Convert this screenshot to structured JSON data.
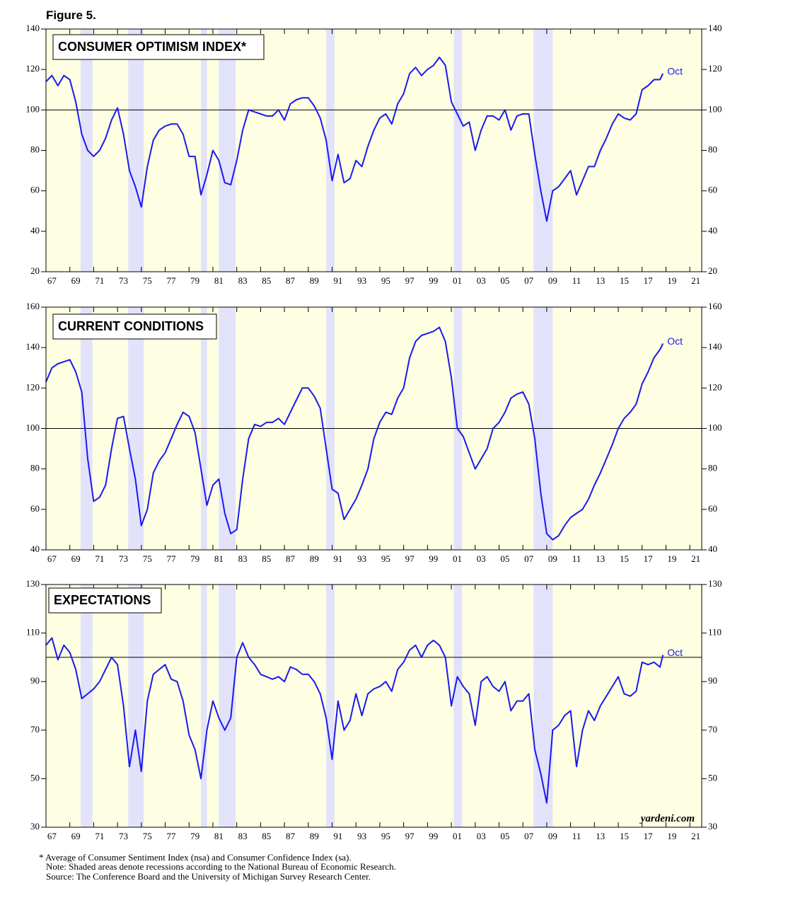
{
  "figure_label": "Figure 5.",
  "footnotes": [
    "* Average of Consumer Sentiment Index (nsa) and Consumer Confidence Index (sa).",
    "Note: Shaded areas denote recessions according to the National Bureau of Economic Research.",
    "Source: The Conference Board and the University of Michigan Survey Research Center."
  ],
  "credit": "yardeni.com",
  "chart_data": [
    {
      "type": "line",
      "title": "CONSUMER OPTIMISM INDEX*",
      "end_label": "Oct",
      "hline": 100,
      "xlim": [
        1967,
        2022
      ],
      "ylim": [
        20,
        140
      ],
      "yticks": [
        20,
        40,
        60,
        80,
        100,
        120,
        140
      ],
      "xticks": [
        {
          "value": 1967,
          "label": "67"
        },
        {
          "value": 1969,
          "label": "69"
        },
        {
          "value": 1971,
          "label": "71"
        },
        {
          "value": 1973,
          "label": "73"
        },
        {
          "value": 1975,
          "label": "75"
        },
        {
          "value": 1977,
          "label": "77"
        },
        {
          "value": 1979,
          "label": "79"
        },
        {
          "value": 1981,
          "label": "81"
        },
        {
          "value": 1983,
          "label": "83"
        },
        {
          "value": 1985,
          "label": "85"
        },
        {
          "value": 1987,
          "label": "87"
        },
        {
          "value": 1989,
          "label": "89"
        },
        {
          "value": 1991,
          "label": "91"
        },
        {
          "value": 1993,
          "label": "93"
        },
        {
          "value": 1995,
          "label": "95"
        },
        {
          "value": 1997,
          "label": "97"
        },
        {
          "value": 1999,
          "label": "99"
        },
        {
          "value": 2001,
          "label": "01"
        },
        {
          "value": 2003,
          "label": "03"
        },
        {
          "value": 2005,
          "label": "05"
        },
        {
          "value": 2007,
          "label": "07"
        },
        {
          "value": 2009,
          "label": "09"
        },
        {
          "value": 2011,
          "label": "11"
        },
        {
          "value": 2013,
          "label": "13"
        },
        {
          "value": 2015,
          "label": "15"
        },
        {
          "value": 2017,
          "label": "17"
        },
        {
          "value": 2019,
          "label": "19"
        },
        {
          "value": 2021,
          "label": "21"
        }
      ],
      "recessions": [
        [
          1969.9,
          1970.9
        ],
        [
          1973.9,
          1975.2
        ],
        [
          1980.0,
          1980.5
        ],
        [
          1981.5,
          1982.9
        ],
        [
          1990.5,
          1991.2
        ],
        [
          2001.2,
          2001.9
        ],
        [
          2007.9,
          2009.5
        ]
      ],
      "x": [
        1967,
        1967.5,
        1968,
        1968.5,
        1969,
        1969.5,
        1970,
        1970.5,
        1971,
        1971.5,
        1972,
        1972.5,
        1973,
        1973.5,
        1974,
        1974.5,
        1975,
        1975.5,
        1976,
        1976.5,
        1977,
        1977.5,
        1978,
        1978.5,
        1979,
        1979.5,
        1980,
        1980.5,
        1981,
        1981.5,
        1982,
        1982.5,
        1983,
        1983.5,
        1984,
        1984.5,
        1985,
        1985.5,
        1986,
        1986.5,
        1987,
        1987.5,
        1988,
        1988.5,
        1989,
        1989.5,
        1990,
        1990.5,
        1991,
        1991.5,
        1992,
        1992.5,
        1993,
        1993.5,
        1994,
        1994.5,
        1995,
        1995.5,
        1996,
        1996.5,
        1997,
        1997.5,
        1998,
        1998.5,
        1999,
        1999.5,
        2000,
        2000.5,
        2001,
        2001.5,
        2002,
        2002.5,
        2003,
        2003.5,
        2004,
        2004.5,
        2005,
        2005.5,
        2006,
        2006.5,
        2007,
        2007.5,
        2008,
        2008.5,
        2009,
        2009.5,
        2010,
        2010.5,
        2011,
        2011.5,
        2012,
        2012.5,
        2013,
        2013.5,
        2014,
        2014.5,
        2015,
        2015.5,
        2016,
        2016.5,
        2017,
        2017.5,
        2018,
        2018.5,
        2018.75
      ],
      "series": [
        {
          "color": "#1a1aee",
          "values": [
            114,
            117,
            112,
            117,
            115,
            104,
            88,
            80,
            77,
            80,
            86,
            95,
            101,
            88,
            70,
            62,
            52,
            72,
            85,
            90,
            92,
            93,
            93,
            88,
            77,
            77,
            58,
            68,
            80,
            75,
            64,
            63,
            75,
            90,
            100,
            99,
            98,
            97,
            97,
            100,
            95,
            103,
            105,
            106,
            106,
            102,
            96,
            85,
            65,
            78,
            64,
            66,
            75,
            72,
            82,
            90,
            96,
            98,
            93,
            103,
            108,
            118,
            121,
            117,
            120,
            122,
            126,
            122,
            104,
            98,
            92,
            94,
            80,
            90,
            97,
            97,
            95,
            100,
            90,
            97,
            98,
            98,
            78,
            60,
            45,
            60,
            62,
            66,
            70,
            58,
            65,
            72,
            72,
            80,
            86,
            93,
            98,
            96,
            95,
            98,
            110,
            112,
            115,
            115,
            118
          ]
        }
      ]
    },
    {
      "type": "line",
      "title": "CURRENT CONDITIONS",
      "end_label": "Oct",
      "hline": 100,
      "xlim": [
        1967,
        2022
      ],
      "ylim": [
        40,
        160
      ],
      "yticks": [
        40,
        60,
        80,
        100,
        120,
        140,
        160
      ],
      "xticks": [
        {
          "value": 1967,
          "label": "67"
        },
        {
          "value": 1969,
          "label": "69"
        },
        {
          "value": 1971,
          "label": "71"
        },
        {
          "value": 1973,
          "label": "73"
        },
        {
          "value": 1975,
          "label": "75"
        },
        {
          "value": 1977,
          "label": "77"
        },
        {
          "value": 1979,
          "label": "79"
        },
        {
          "value": 1981,
          "label": "81"
        },
        {
          "value": 1983,
          "label": "83"
        },
        {
          "value": 1985,
          "label": "85"
        },
        {
          "value": 1987,
          "label": "87"
        },
        {
          "value": 1989,
          "label": "89"
        },
        {
          "value": 1991,
          "label": "91"
        },
        {
          "value": 1993,
          "label": "93"
        },
        {
          "value": 1995,
          "label": "95"
        },
        {
          "value": 1997,
          "label": "97"
        },
        {
          "value": 1999,
          "label": "99"
        },
        {
          "value": 2001,
          "label": "01"
        },
        {
          "value": 2003,
          "label": "03"
        },
        {
          "value": 2005,
          "label": "05"
        },
        {
          "value": 2007,
          "label": "07"
        },
        {
          "value": 2009,
          "label": "09"
        },
        {
          "value": 2011,
          "label": "11"
        },
        {
          "value": 2013,
          "label": "13"
        },
        {
          "value": 2015,
          "label": "15"
        },
        {
          "value": 2017,
          "label": "17"
        },
        {
          "value": 2019,
          "label": "19"
        },
        {
          "value": 2021,
          "label": "21"
        }
      ],
      "recessions": [
        [
          1969.9,
          1970.9
        ],
        [
          1973.9,
          1975.2
        ],
        [
          1980.0,
          1980.5
        ],
        [
          1981.5,
          1982.9
        ],
        [
          1990.5,
          1991.2
        ],
        [
          2001.2,
          2001.9
        ],
        [
          2007.9,
          2009.5
        ]
      ],
      "x": [
        1967,
        1967.5,
        1968,
        1968.5,
        1969,
        1969.5,
        1970,
        1970.5,
        1971,
        1971.5,
        1972,
        1972.5,
        1973,
        1973.5,
        1974,
        1974.5,
        1975,
        1975.5,
        1976,
        1976.5,
        1977,
        1977.5,
        1978,
        1978.5,
        1979,
        1979.5,
        1980,
        1980.5,
        1981,
        1981.5,
        1982,
        1982.5,
        1983,
        1983.5,
        1984,
        1984.5,
        1985,
        1985.5,
        1986,
        1986.5,
        1987,
        1987.5,
        1988,
        1988.5,
        1989,
        1989.5,
        1990,
        1990.5,
        1991,
        1991.5,
        1992,
        1992.5,
        1993,
        1993.5,
        1994,
        1994.5,
        1995,
        1995.5,
        1996,
        1996.5,
        1997,
        1997.5,
        1998,
        1998.5,
        1999,
        1999.5,
        2000,
        2000.5,
        2001,
        2001.5,
        2002,
        2002.5,
        2003,
        2003.5,
        2004,
        2004.5,
        2005,
        2005.5,
        2006,
        2006.5,
        2007,
        2007.5,
        2008,
        2008.5,
        2009,
        2009.5,
        2010,
        2010.5,
        2011,
        2011.5,
        2012,
        2012.5,
        2013,
        2013.5,
        2014,
        2014.5,
        2015,
        2015.5,
        2016,
        2016.5,
        2017,
        2017.5,
        2018,
        2018.5,
        2018.75
      ],
      "series": [
        {
          "color": "#1a1aee",
          "values": [
            123,
            130,
            132,
            133,
            134,
            128,
            118,
            85,
            64,
            66,
            72,
            90,
            105,
            106,
            90,
            75,
            52,
            60,
            78,
            84,
            88,
            95,
            102,
            108,
            106,
            98,
            80,
            62,
            72,
            75,
            58,
            48,
            50,
            75,
            95,
            102,
            101,
            103,
            103,
            105,
            102,
            108,
            114,
            120,
            120,
            116,
            110,
            90,
            70,
            68,
            55,
            60,
            65,
            72,
            80,
            95,
            103,
            108,
            107,
            115,
            120,
            135,
            143,
            146,
            147,
            148,
            150,
            143,
            125,
            100,
            96,
            88,
            80,
            85,
            90,
            100,
            103,
            108,
            115,
            117,
            118,
            112,
            95,
            68,
            48,
            45,
            47,
            52,
            56,
            58,
            60,
            65,
            72,
            78,
            85,
            92,
            100,
            105,
            108,
            112,
            122,
            128,
            135,
            139,
            142
          ]
        }
      ]
    },
    {
      "type": "line",
      "title": "EXPECTATIONS",
      "end_label": "Oct",
      "hline": 100,
      "xlim": [
        1967,
        2022
      ],
      "ylim": [
        30,
        130
      ],
      "yticks": [
        30,
        50,
        70,
        90,
        110,
        130
      ],
      "xticks": [
        {
          "value": 1967,
          "label": "67"
        },
        {
          "value": 1969,
          "label": "69"
        },
        {
          "value": 1971,
          "label": "71"
        },
        {
          "value": 1973,
          "label": "73"
        },
        {
          "value": 1975,
          "label": "75"
        },
        {
          "value": 1977,
          "label": "77"
        },
        {
          "value": 1979,
          "label": "79"
        },
        {
          "value": 1981,
          "label": "81"
        },
        {
          "value": 1983,
          "label": "83"
        },
        {
          "value": 1985,
          "label": "85"
        },
        {
          "value": 1987,
          "label": "87"
        },
        {
          "value": 1989,
          "label": "89"
        },
        {
          "value": 1991,
          "label": "91"
        },
        {
          "value": 1993,
          "label": "93"
        },
        {
          "value": 1995,
          "label": "95"
        },
        {
          "value": 1997,
          "label": "97"
        },
        {
          "value": 1999,
          "label": "99"
        },
        {
          "value": 2001,
          "label": "01"
        },
        {
          "value": 2003,
          "label": "03"
        },
        {
          "value": 2005,
          "label": "05"
        },
        {
          "value": 2007,
          "label": "07"
        },
        {
          "value": 2009,
          "label": "09"
        },
        {
          "value": 2011,
          "label": "11"
        },
        {
          "value": 2013,
          "label": "13"
        },
        {
          "value": 2015,
          "label": "15"
        },
        {
          "value": 2017,
          "label": "17"
        },
        {
          "value": 2019,
          "label": "19"
        },
        {
          "value": 2021,
          "label": "21"
        }
      ],
      "recessions": [
        [
          1969.9,
          1970.9
        ],
        [
          1973.9,
          1975.2
        ],
        [
          1980.0,
          1980.5
        ],
        [
          1981.5,
          1982.9
        ],
        [
          1990.5,
          1991.2
        ],
        [
          2001.2,
          2001.9
        ],
        [
          2007.9,
          2009.5
        ]
      ],
      "x": [
        1967,
        1967.5,
        1968,
        1968.5,
        1969,
        1969.5,
        1970,
        1970.5,
        1971,
        1971.5,
        1972,
        1972.5,
        1973,
        1973.5,
        1974,
        1974.5,
        1975,
        1975.5,
        1976,
        1976.5,
        1977,
        1977.5,
        1978,
        1978.5,
        1979,
        1979.5,
        1980,
        1980.5,
        1981,
        1981.5,
        1982,
        1982.5,
        1983,
        1983.5,
        1984,
        1984.5,
        1985,
        1985.5,
        1986,
        1986.5,
        1987,
        1987.5,
        1988,
        1988.5,
        1989,
        1989.5,
        1990,
        1990.5,
        1991,
        1991.5,
        1992,
        1992.5,
        1993,
        1993.5,
        1994,
        1994.5,
        1995,
        1995.5,
        1996,
        1996.5,
        1997,
        1997.5,
        1998,
        1998.5,
        1999,
        1999.5,
        2000,
        2000.5,
        2001,
        2001.5,
        2002,
        2002.5,
        2003,
        2003.5,
        2004,
        2004.5,
        2005,
        2005.5,
        2006,
        2006.5,
        2007,
        2007.5,
        2008,
        2008.5,
        2009,
        2009.5,
        2010,
        2010.5,
        2011,
        2011.5,
        2012,
        2012.5,
        2013,
        2013.5,
        2014,
        2014.5,
        2015,
        2015.5,
        2016,
        2016.5,
        2017,
        2017.5,
        2018,
        2018.5,
        2018.75
      ],
      "series": [
        {
          "color": "#1a1aee",
          "values": [
            105,
            108,
            99,
            105,
            102,
            95,
            83,
            85,
            87,
            90,
            95,
            100,
            97,
            80,
            55,
            70,
            53,
            82,
            93,
            95,
            97,
            91,
            90,
            82,
            68,
            62,
            50,
            70,
            82,
            75,
            70,
            75,
            100,
            106,
            100,
            97,
            93,
            92,
            91,
            92,
            90,
            96,
            95,
            93,
            93,
            90,
            85,
            75,
            58,
            82,
            70,
            74,
            85,
            76,
            85,
            87,
            88,
            90,
            86,
            95,
            98,
            103,
            105,
            100,
            105,
            107,
            105,
            100,
            80,
            92,
            88,
            85,
            72,
            90,
            92,
            88,
            86,
            90,
            78,
            82,
            82,
            85,
            62,
            52,
            40,
            70,
            72,
            76,
            78,
            55,
            70,
            78,
            74,
            80,
            84,
            88,
            92,
            85,
            84,
            86,
            98,
            97,
            98,
            96,
            101
          ]
        }
      ]
    }
  ]
}
